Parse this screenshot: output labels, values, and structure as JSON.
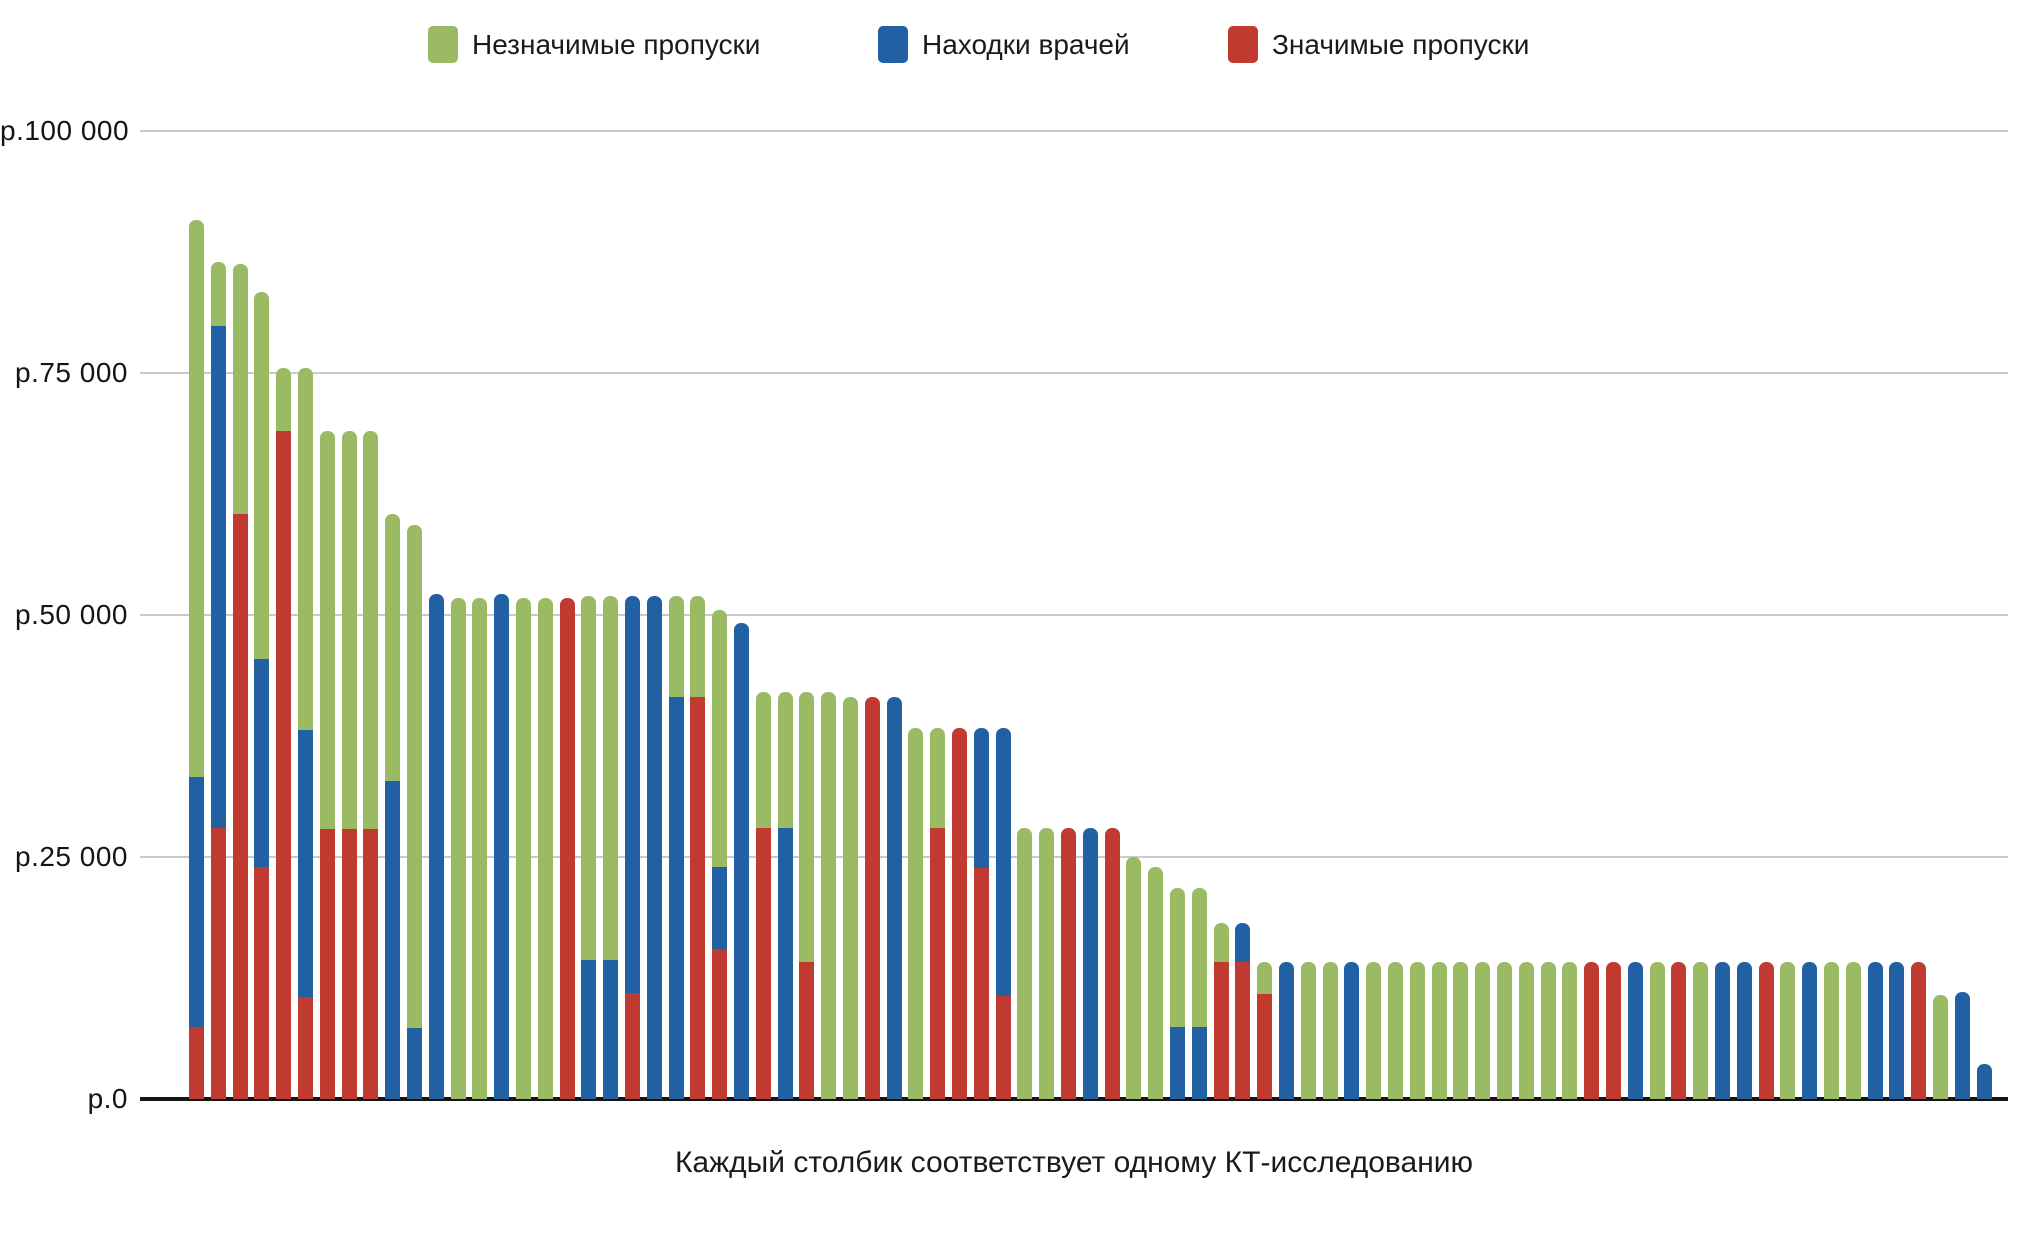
{
  "legend": {
    "items": [
      {
        "label": "Незначимые пропуски",
        "color": "#9BBA64",
        "series_key": "green"
      },
      {
        "label": "Находки врачей",
        "color": "#2161A3",
        "series_key": "blue"
      },
      {
        "label": "Значимые пропуски",
        "color": "#C13A30",
        "series_key": "red"
      }
    ]
  },
  "y_axis": {
    "ticks": [
      {
        "label": "р.100 000",
        "value": 100000
      },
      {
        "label": "р.75 000",
        "value": 75000
      },
      {
        "label": "р.50 000",
        "value": 50000
      },
      {
        "label": "р.25 000",
        "value": 25000
      },
      {
        "label": "р.0",
        "value": 0
      }
    ],
    "currency": "руб."
  },
  "caption": "Каждый столбик соответствует одному КТ-исследованию",
  "chart_data": {
    "type": "bar",
    "stacked": true,
    "bar_count": 83,
    "x_meaning": "Каждый столбик соответствует одному КТ-исследованию",
    "ylim": [
      0,
      100000
    ],
    "grid": "horizontal",
    "legend_position": "top",
    "stack_order_bottom_to_top": [
      "Значимые пропуски",
      "Находки врачей",
      "Незначимые пропуски"
    ],
    "series": [
      {
        "name": "Значимые пропуски",
        "color": "#C13A30",
        "values": [
          7400,
          28000,
          60400,
          24000,
          69000,
          10500,
          27900,
          27900,
          27900,
          0,
          0,
          0,
          0,
          0,
          0,
          0,
          0,
          51800,
          0,
          0,
          11000,
          0,
          0,
          41500,
          15500,
          0,
          28000,
          0,
          14200,
          0,
          0,
          41500,
          0,
          0,
          28000,
          38300,
          23900,
          10600,
          0,
          0,
          28000,
          0,
          28000,
          0,
          0,
          0,
          0,
          14100,
          14100,
          10800,
          0,
          0,
          0,
          0,
          0,
          0,
          0,
          0,
          0,
          0,
          0,
          0,
          0,
          0,
          14200,
          14200,
          0,
          0,
          14200,
          0,
          0,
          0,
          14200,
          0,
          0,
          0,
          0,
          0,
          0,
          14200,
          0,
          0,
          0
        ]
      },
      {
        "name": "Находки врачей",
        "color": "#2161A3",
        "values": [
          25900,
          51900,
          0,
          21500,
          0,
          27600,
          0,
          0,
          0,
          32800,
          7300,
          52200,
          0,
          0,
          52200,
          0,
          0,
          0,
          14400,
          14400,
          41000,
          52000,
          41500,
          0,
          8500,
          49200,
          0,
          28000,
          0,
          0,
          0,
          0,
          41500,
          0,
          0,
          0,
          14400,
          27700,
          0,
          0,
          0,
          28000,
          0,
          0,
          0,
          7400,
          7400,
          0,
          4100,
          0,
          14200,
          0,
          0,
          14200,
          0,
          0,
          0,
          0,
          0,
          0,
          0,
          0,
          0,
          0,
          0,
          0,
          14200,
          0,
          0,
          0,
          14200,
          14200,
          0,
          0,
          14200,
          0,
          0,
          14200,
          14200,
          0,
          0,
          11100,
          3600
        ]
      },
      {
        "name": "Незначимые пропуски",
        "color": "#9BBA64",
        "values": [
          57500,
          6600,
          25900,
          37900,
          6500,
          37400,
          41100,
          41100,
          41100,
          27600,
          52000,
          0,
          51800,
          51800,
          0,
          51800,
          51800,
          0,
          37600,
          37600,
          0,
          0,
          10500,
          10500,
          26500,
          0,
          14000,
          14000,
          27800,
          42000,
          41500,
          0,
          0,
          38300,
          10300,
          0,
          0,
          0,
          28000,
          28000,
          0,
          0,
          0,
          25000,
          24000,
          14400,
          14400,
          4100,
          0,
          3400,
          0,
          14200,
          14200,
          0,
          14200,
          14200,
          14200,
          14200,
          14200,
          14200,
          14200,
          14200,
          14200,
          14200,
          0,
          0,
          0,
          14200,
          0,
          14200,
          0,
          0,
          0,
          14200,
          0,
          14200,
          14200,
          0,
          0,
          0,
          10700,
          0,
          0
        ]
      }
    ]
  }
}
